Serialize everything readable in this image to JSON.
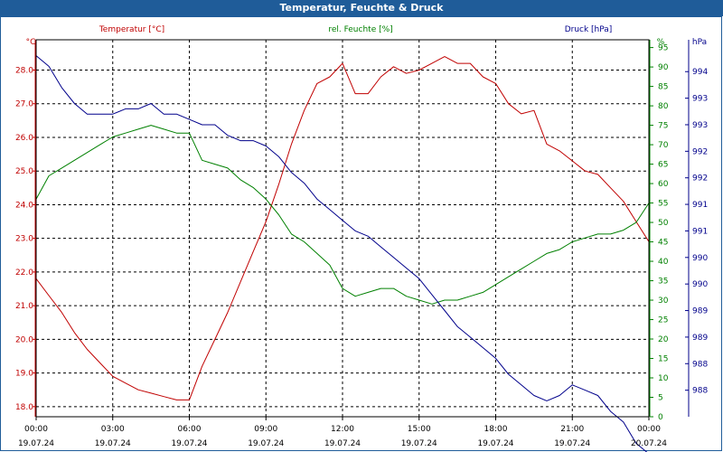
{
  "window_title": "Temperatur, Feuchte & Druck",
  "chart_data": {
    "type": "line",
    "title": "Temperatur, Feuchte & Druck",
    "grid": true,
    "x_ticks": [
      {
        "time": "00:00",
        "date": "19.07.24"
      },
      {
        "time": "03:00",
        "date": "19.07.24"
      },
      {
        "time": "06:00",
        "date": "19.07.24"
      },
      {
        "time": "09:00",
        "date": "19.07.24"
      },
      {
        "time": "12:00",
        "date": "19.07.24"
      },
      {
        "time": "15:00",
        "date": "19.07.24"
      },
      {
        "time": "18:00",
        "date": "19.07.24"
      },
      {
        "time": "21:00",
        "date": "19.07.24"
      },
      {
        "time": "00:00",
        "date": "20.07.24"
      }
    ],
    "x_hours": [
      0,
      0.5,
      1,
      1.5,
      2,
      2.5,
      3,
      3.5,
      4,
      4.5,
      5,
      5.5,
      6,
      6.5,
      7,
      7.5,
      8,
      8.5,
      9,
      9.5,
      10,
      10.5,
      11,
      11.5,
      12,
      12.5,
      13,
      13.5,
      14,
      14.5,
      15,
      15.5,
      16,
      16.5,
      17,
      17.5,
      18,
      18.5,
      19,
      19.5,
      20,
      20.5,
      21,
      21.5,
      22,
      22.5,
      23,
      23.5,
      24
    ],
    "axes": {
      "temperature": {
        "unit_label": "°C",
        "color": "#c00000",
        "min": 17.7,
        "max": 28.9,
        "ticks": [
          "18.0",
          "19.0",
          "20.0",
          "21.0",
          "22.0",
          "23.0",
          "24.0",
          "25.0",
          "26.0",
          "27.0",
          "28.0"
        ]
      },
      "humidity": {
        "unit_label": "%",
        "color": "#008000",
        "min": 0,
        "max": 97,
        "ticks": [
          "0",
          "5",
          "10",
          "15",
          "20",
          "25",
          "30",
          "35",
          "40",
          "45",
          "50",
          "55",
          "60",
          "65",
          "70",
          "75",
          "80",
          "85",
          "90",
          "95"
        ]
      },
      "pressure": {
        "unit_label": "hPa",
        "color": "#00008b",
        "min": 987.5,
        "max": 994.6,
        "ticks_values": [
          988,
          988.5,
          989,
          989.5,
          990,
          990.5,
          991,
          991.5,
          992,
          992.5,
          993,
          993.5,
          994
        ],
        "ticks": [
          "988",
          "988",
          "989",
          "989",
          "990",
          "990",
          "991",
          "991",
          "992",
          "992",
          "993",
          "993",
          "994"
        ]
      }
    },
    "series": [
      {
        "name": "Temperatur [°C]",
        "axis": "temperature",
        "color": "#c00000",
        "values": [
          21.8,
          21.3,
          20.8,
          20.2,
          19.7,
          19.3,
          18.9,
          18.7,
          18.5,
          18.4,
          18.3,
          18.2,
          18.2,
          19.2,
          20.0,
          20.8,
          21.7,
          22.6,
          23.5,
          24.6,
          25.8,
          26.8,
          27.6,
          27.8,
          28.2,
          27.3,
          27.3,
          27.8,
          28.1,
          27.9,
          28.0,
          28.2,
          28.4,
          28.2,
          28.2,
          27.8,
          27.6,
          27.0,
          26.7,
          26.8,
          25.8,
          25.6,
          25.3,
          25.0,
          24.9,
          24.5,
          24.1,
          23.5,
          22.9
        ]
      },
      {
        "name": "rel. Feuchte [%]",
        "axis": "humidity",
        "color": "#008000",
        "values": [
          56,
          62,
          64,
          66,
          68,
          70,
          72,
          73,
          74,
          75,
          74,
          73,
          73,
          66,
          65,
          64,
          61,
          59,
          56,
          52,
          47,
          45,
          42,
          39,
          33,
          31,
          32,
          33,
          33,
          31,
          30,
          29,
          30,
          30,
          31,
          32,
          34,
          36,
          38,
          40,
          42,
          43,
          45,
          46,
          47,
          47,
          48,
          50,
          55
        ]
      },
      {
        "name": "Druck [hPa]",
        "axis": "pressure",
        "color": "#00008b",
        "values": [
          994.3,
          994.1,
          993.7,
          993.4,
          993.2,
          993.2,
          993.2,
          993.3,
          993.3,
          993.4,
          993.2,
          993.2,
          993.1,
          993.0,
          993.0,
          992.8,
          992.7,
          992.7,
          992.6,
          992.4,
          992.1,
          991.9,
          991.6,
          991.4,
          991.2,
          991.0,
          990.9,
          990.7,
          990.5,
          990.3,
          990.1,
          989.8,
          989.5,
          989.2,
          989.0,
          988.8,
          988.6,
          988.3,
          988.1,
          987.9,
          987.8,
          987.9,
          988.1,
          988.0,
          987.9,
          987.6,
          987.4,
          987.0,
          986.8
        ]
      }
    ]
  }
}
